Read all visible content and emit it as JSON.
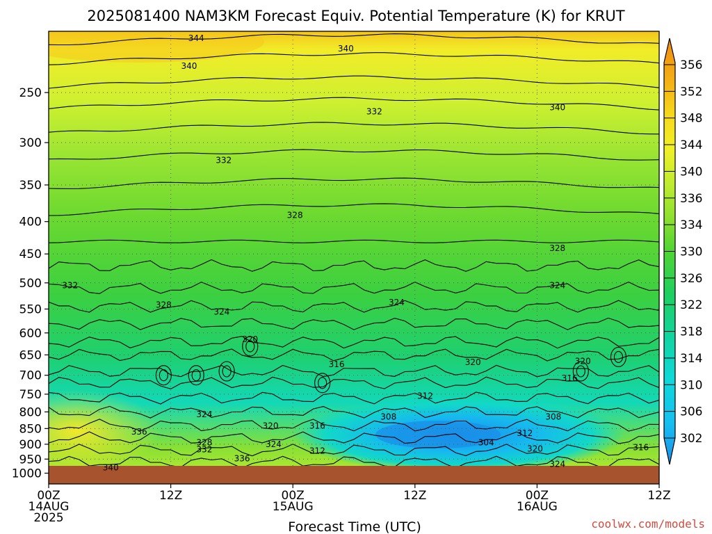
{
  "chart_data": {
    "type": "heatmap",
    "title": "2025081400 NAM3KM Forecast Equiv. Potential Temperature (K) for KRUT",
    "xlabel": "Forecast Time (UTC)",
    "ylabel": "",
    "credit": "coolwx.com/models",
    "x_ticks": [
      {
        "hour": 0,
        "labels": [
          "00Z",
          "14AUG",
          "2025"
        ]
      },
      {
        "hour": 12,
        "labels": [
          "12Z"
        ]
      },
      {
        "hour": 24,
        "labels": [
          "00Z",
          "15AUG"
        ]
      },
      {
        "hour": 36,
        "labels": [
          "12Z"
        ]
      },
      {
        "hour": 48,
        "labels": [
          "00Z",
          "16AUG"
        ]
      },
      {
        "hour": 60,
        "labels": [
          "12Z"
        ]
      }
    ],
    "xlim": [
      0,
      60
    ],
    "y_ticks": [
      250,
      300,
      350,
      400,
      450,
      500,
      550,
      600,
      650,
      700,
      750,
      800,
      850,
      900,
      950,
      1000
    ],
    "ylim": [
      200,
      1040
    ],
    "y_scale": "log-pressure",
    "grid": "dotted",
    "colorbar": {
      "levels": [
        302,
        306,
        310,
        314,
        318,
        322,
        326,
        330,
        334,
        336,
        340,
        344,
        348,
        352,
        356
      ],
      "colors": [
        "#1a8fe8",
        "#16c0f0",
        "#0fd8d8",
        "#10d8b0",
        "#12d08a",
        "#1ed060",
        "#3cd040",
        "#68d830",
        "#90e030",
        "#bcec30",
        "#eef028",
        "#f6e01e",
        "#f6c018",
        "#f4a014",
        "#ee8a10",
        "#e07a10"
      ]
    },
    "contour_labels": [
      {
        "hour": 14.5,
        "p": 205,
        "text": "344"
      },
      {
        "hour": 29.2,
        "p": 213,
        "text": "340"
      },
      {
        "hour": 13.8,
        "p": 227,
        "text": "340"
      },
      {
        "hour": 32.0,
        "p": 268,
        "text": "332"
      },
      {
        "hour": 50.0,
        "p": 264,
        "text": "340"
      },
      {
        "hour": 17.2,
        "p": 320,
        "text": "332"
      },
      {
        "hour": 24.2,
        "p": 391,
        "text": "328"
      },
      {
        "hour": 50.0,
        "p": 441,
        "text": "328"
      },
      {
        "hour": 2.1,
        "p": 505,
        "text": "332"
      },
      {
        "hour": 11.3,
        "p": 542,
        "text": "328"
      },
      {
        "hour": 17.0,
        "p": 556,
        "text": "324"
      },
      {
        "hour": 34.2,
        "p": 537,
        "text": "324"
      },
      {
        "hour": 50.0,
        "p": 505,
        "text": "324"
      },
      {
        "hour": 19.8,
        "p": 614,
        "text": "320"
      },
      {
        "hour": 28.3,
        "p": 673,
        "text": "316"
      },
      {
        "hour": 41.7,
        "p": 668,
        "text": "320"
      },
      {
        "hour": 51.2,
        "p": 708,
        "text": "316"
      },
      {
        "hour": 52.5,
        "p": 665,
        "text": "320"
      },
      {
        "hour": 37.0,
        "p": 755,
        "text": "312"
      },
      {
        "hour": 33.4,
        "p": 815,
        "text": "308"
      },
      {
        "hour": 49.6,
        "p": 815,
        "text": "308"
      },
      {
        "hour": 15.3,
        "p": 807,
        "text": "324"
      },
      {
        "hour": 8.9,
        "p": 860,
        "text": "336"
      },
      {
        "hour": 21.8,
        "p": 842,
        "text": "320"
      },
      {
        "hour": 26.4,
        "p": 842,
        "text": "316"
      },
      {
        "hour": 15.3,
        "p": 895,
        "text": "328"
      },
      {
        "hour": 15.3,
        "p": 917,
        "text": "332"
      },
      {
        "hour": 22.1,
        "p": 900,
        "text": "324"
      },
      {
        "hour": 19.0,
        "p": 948,
        "text": "336"
      },
      {
        "hour": 26.4,
        "p": 922,
        "text": "312"
      },
      {
        "hour": 43.0,
        "p": 894,
        "text": "304"
      },
      {
        "hour": 46.8,
        "p": 865,
        "text": "312"
      },
      {
        "hour": 47.8,
        "p": 915,
        "text": "320"
      },
      {
        "hour": 58.2,
        "p": 910,
        "text": "316"
      },
      {
        "hour": 50.0,
        "p": 968,
        "text": "324"
      },
      {
        "hour": 6.1,
        "p": 980,
        "text": "340"
      }
    ]
  }
}
